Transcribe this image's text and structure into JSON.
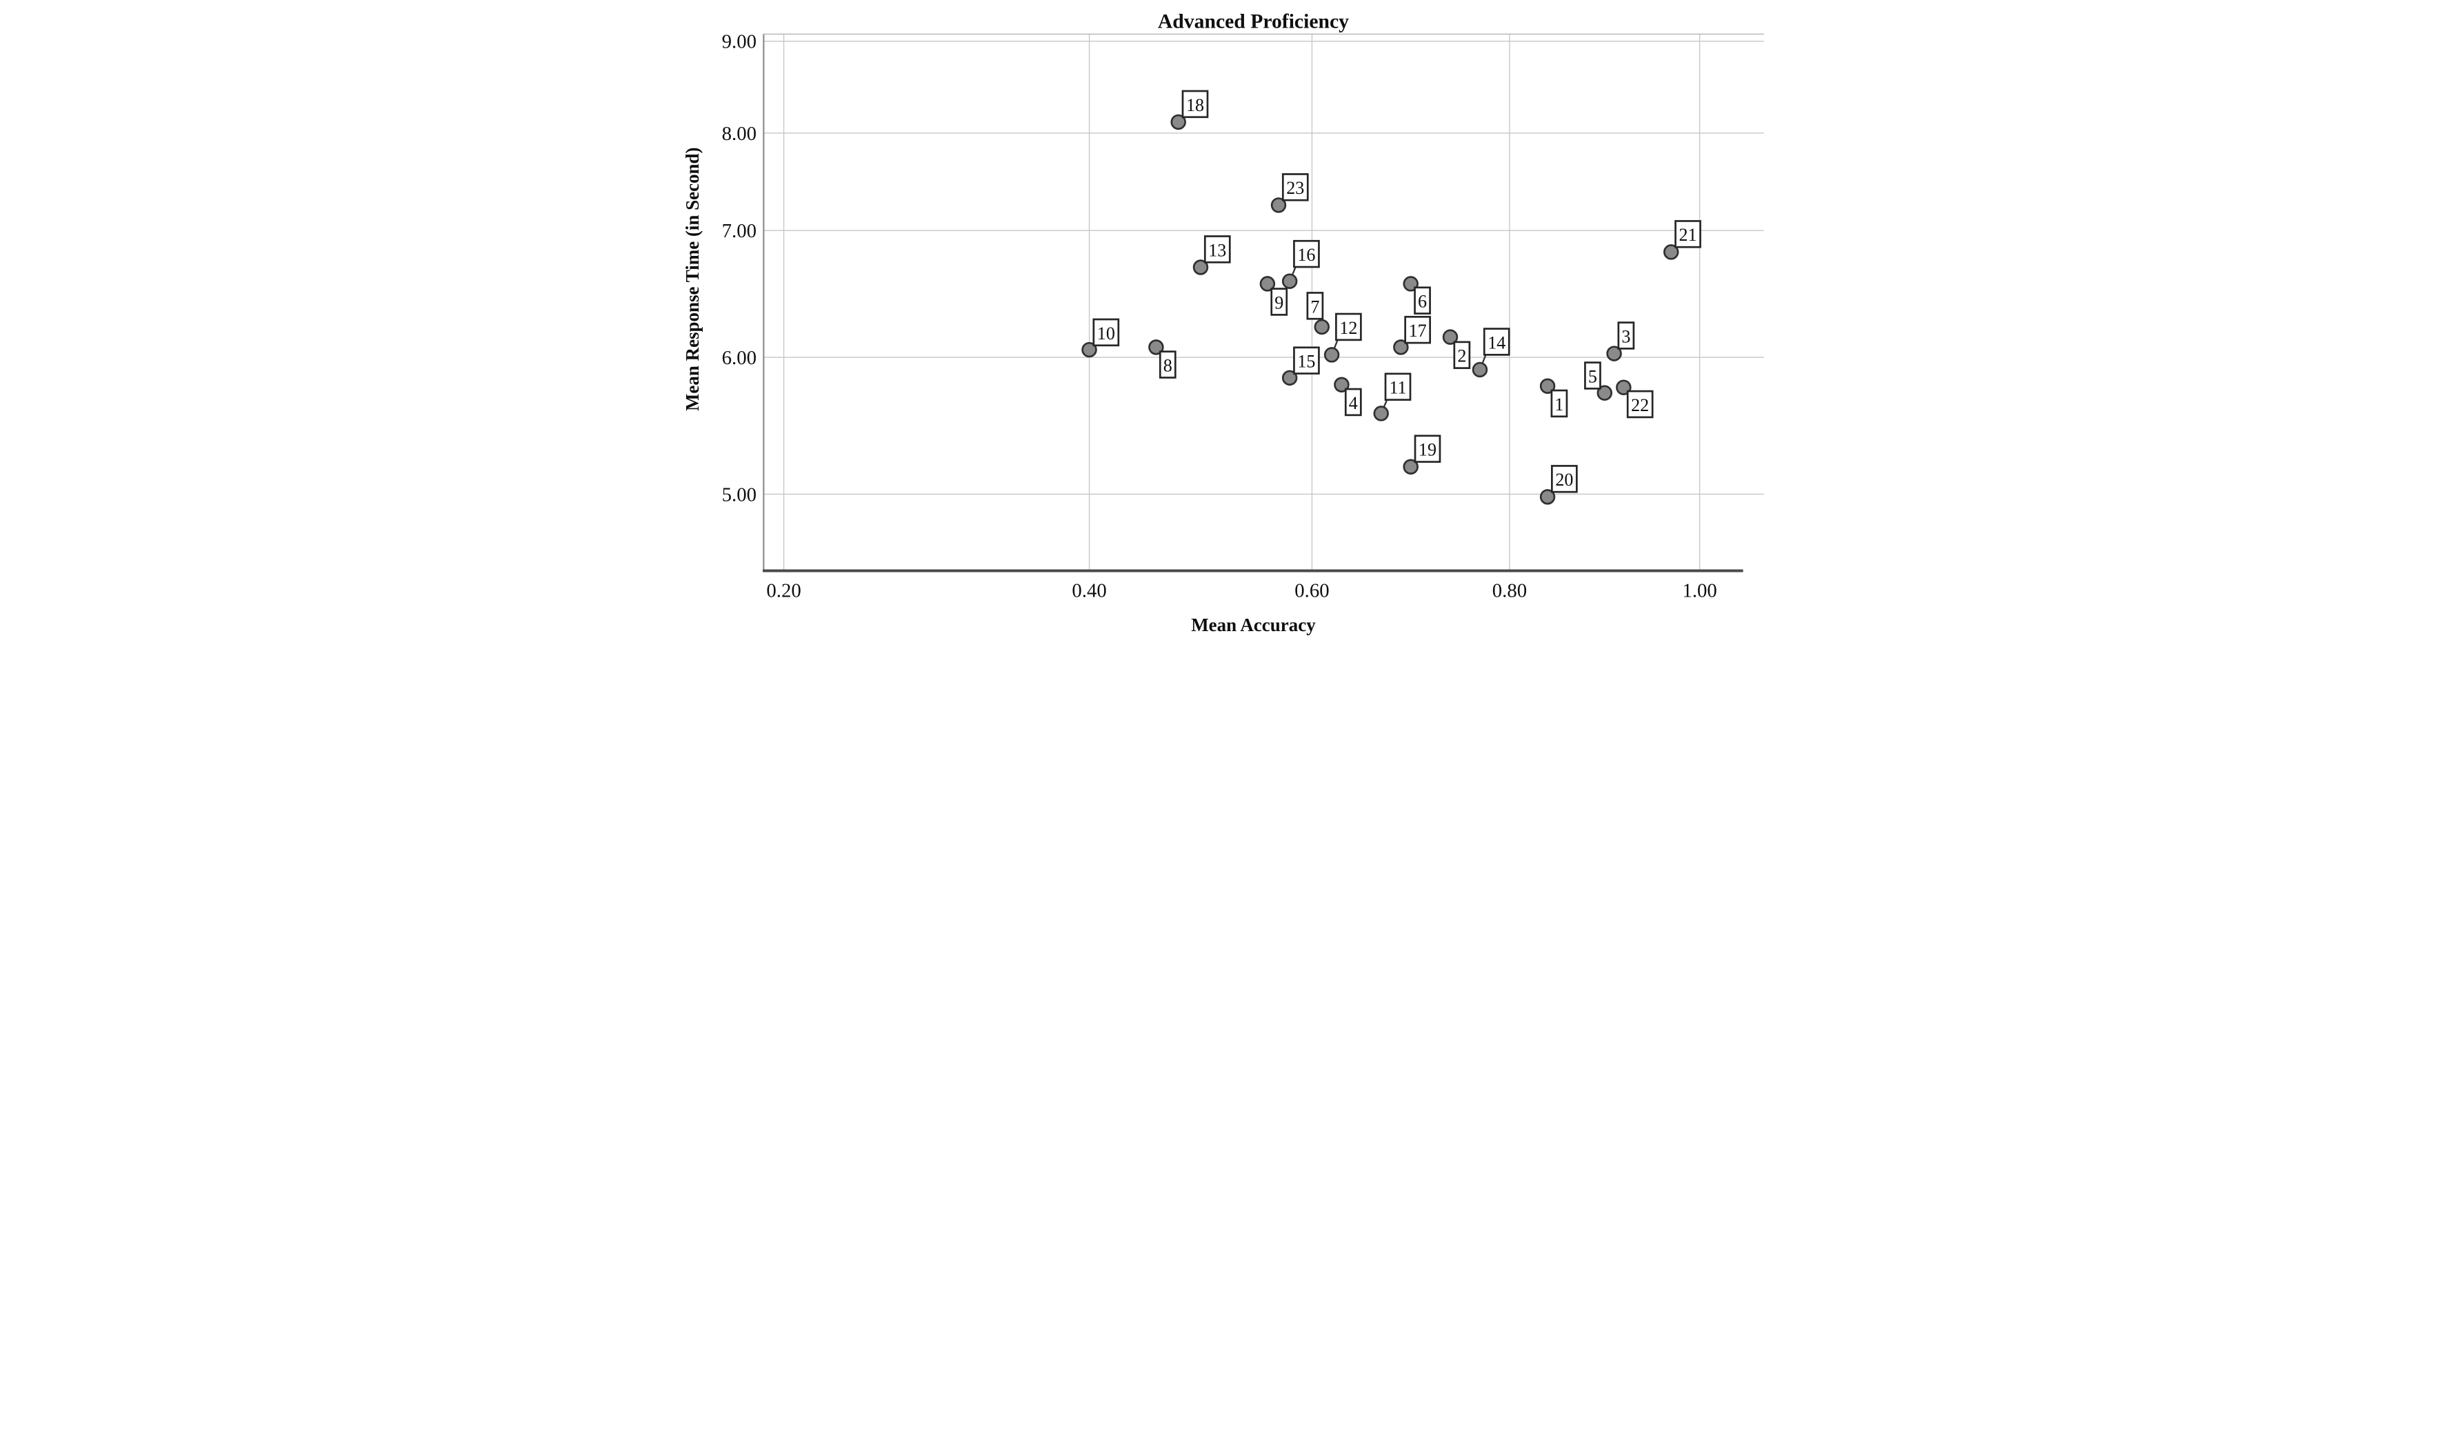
{
  "chart_data": {
    "type": "scatter",
    "title": "Advanced Proficiency",
    "xlabel": "Mean Accuracy",
    "ylabel": "Mean Response Time (in Second)",
    "xlim": [
      0.155,
      1.04
    ],
    "ylim": [
      4.35,
      9.1
    ],
    "grid": true,
    "legend": "none",
    "x_tick_values": [
      0.2,
      0.4,
      0.6,
      0.8,
      1.0
    ],
    "x_tick_labels": [
      "0.20",
      "0.40",
      "0.60",
      "0.80",
      "1.00"
    ],
    "y_tick_values": [
      9.0,
      8.0,
      7.0,
      6.0,
      5.0
    ],
    "y_tick_labels": [
      "9.00",
      "8.00",
      "7.00",
      "6.00",
      "5.00"
    ],
    "point_style": "filled-gray-circle-with-numbered-box-label",
    "points": [
      {
        "id": "1",
        "x": 0.84,
        "y": 5.79,
        "label_pos": "below-right",
        "gap": 14
      },
      {
        "id": "2",
        "x": 0.74,
        "y": 6.16,
        "label_pos": "below-right",
        "gap": 16
      },
      {
        "id": "3",
        "x": 0.91,
        "y": 6.03,
        "label_pos": "above-right",
        "gap": 16
      },
      {
        "id": "4",
        "x": 0.63,
        "y": 5.8,
        "label_pos": "below-right",
        "gap": 14
      },
      {
        "id": "5",
        "x": 0.9,
        "y": 5.74,
        "label_pos": "above-left",
        "gap": 14
      },
      {
        "id": "6",
        "x": 0.7,
        "y": 6.58,
        "label_pos": "below-right",
        "gap": 12
      },
      {
        "id": "7",
        "x": 0.61,
        "y": 6.24,
        "label_pos": "above",
        "gap": 26
      },
      {
        "id": "8",
        "x": 0.46,
        "y": 6.08,
        "label_pos": "below-right",
        "gap": 14
      },
      {
        "id": "9",
        "x": 0.56,
        "y": 6.58,
        "label_pos": "below-right",
        "gap": 16
      },
      {
        "id": "10",
        "x": 0.4,
        "y": 6.06,
        "label_pos": "above-right",
        "gap": 14
      },
      {
        "id": "11",
        "x": 0.67,
        "y": 5.59,
        "label_pos": "above-right",
        "gap": 44
      },
      {
        "id": "12",
        "x": 0.62,
        "y": 6.02,
        "label_pos": "above-right",
        "gap": 48
      },
      {
        "id": "13",
        "x": 0.5,
        "y": 6.71,
        "label_pos": "above-right",
        "gap": 16
      },
      {
        "id": "14",
        "x": 0.77,
        "y": 5.91,
        "label_pos": "above-right",
        "gap": 48
      },
      {
        "id": "15",
        "x": 0.58,
        "y": 5.85,
        "label_pos": "above-right",
        "gap": 14
      },
      {
        "id": "16",
        "x": 0.58,
        "y": 6.6,
        "label_pos": "above-right",
        "gap": 46
      },
      {
        "id": "17",
        "x": 0.69,
        "y": 6.08,
        "label_pos": "above-right",
        "gap": 14
      },
      {
        "id": "18",
        "x": 0.48,
        "y": 8.12,
        "label_pos": "above-right",
        "gap": 16
      },
      {
        "id": "19",
        "x": 0.7,
        "y": 5.2,
        "label_pos": "above-right",
        "gap": 16
      },
      {
        "id": "20",
        "x": 0.84,
        "y": 4.98,
        "label_pos": "above-right",
        "gap": 16
      },
      {
        "id": "21",
        "x": 0.97,
        "y": 6.83,
        "label_pos": "above-right",
        "gap": 16
      },
      {
        "id": "22",
        "x": 0.92,
        "y": 5.78,
        "label_pos": "below-right",
        "gap": 12
      },
      {
        "id": "23",
        "x": 0.57,
        "y": 7.26,
        "label_pos": "above-right",
        "gap": 16
      }
    ]
  },
  "colors": {
    "background": "#ffffff",
    "dot_fill": "#8a8a8a",
    "dot_stroke": "#303030",
    "grid": "#c6c6c6",
    "axis_bottom": "#4a4a4a",
    "axis_left": "#8f8f8f",
    "frame": "#b3b3b3",
    "text": "#0f0f0f",
    "label_box_border": "#262626",
    "label_box_fill": "#ffffff"
  }
}
